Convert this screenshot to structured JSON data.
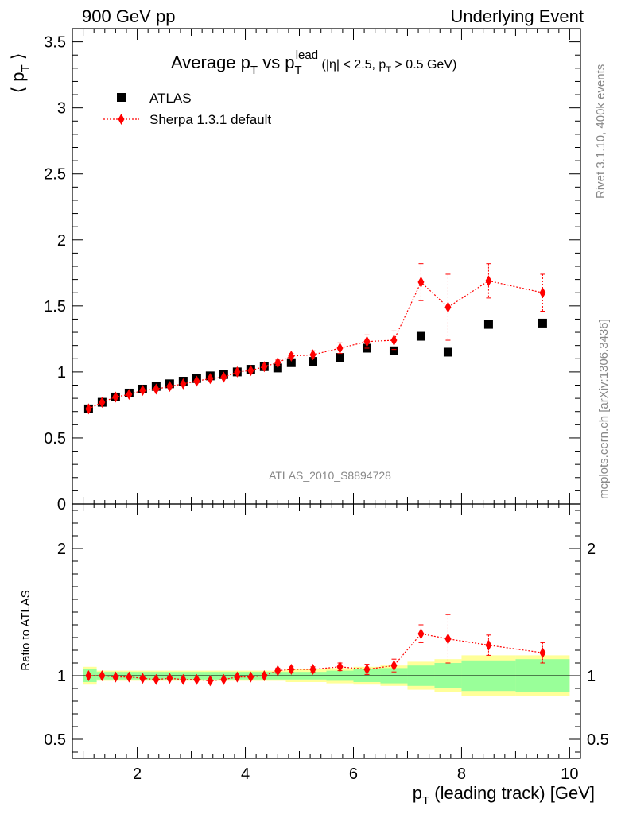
{
  "header": {
    "left": "900 GeV pp",
    "right": "Underlying Event"
  },
  "side_labels": {
    "rivet": "Rivet 3.1.10,  400k events",
    "mcplots": "mcplots.cern.ch [arXiv:1306.3436]"
  },
  "chart_data": [
    {
      "type": "scatter",
      "title": {
        "main": "Average p",
        "main_sub": "T",
        "vs": " vs p",
        "vs_sub": "T",
        "vs_sup": "lead",
        "cuts_a": " (|η| < 2.5, p",
        "cuts_sub": "T",
        "cuts_b": " > 0.5 GeV)"
      },
      "ylabel": {
        "open": "⟨ p",
        "sub": "T",
        "close": " ⟩"
      },
      "analysis_label": "ATLAS_2010_S8894728",
      "ylim": [
        0,
        3.6
      ],
      "y_ticks": [
        0,
        0.5,
        1,
        1.5,
        2,
        2.5,
        3,
        3.5
      ],
      "y_tick_labels": [
        "0",
        "0.5",
        "1",
        "1.5",
        "2",
        "2.5",
        "3",
        "3.5"
      ],
      "xlim": [
        0.8,
        10.2
      ],
      "legend_position": "top-left",
      "series": [
        {
          "name": "ATLAS",
          "marker": "square",
          "color": "#000000",
          "x": [
            1.1,
            1.35,
            1.6,
            1.85,
            2.1,
            2.35,
            2.6,
            2.85,
            3.1,
            3.35,
            3.6,
            3.85,
            4.1,
            4.35,
            4.6,
            4.85,
            5.25,
            5.75,
            6.25,
            6.75,
            7.25,
            7.75,
            8.5,
            9.5
          ],
          "y": [
            0.72,
            0.77,
            0.81,
            0.84,
            0.87,
            0.89,
            0.91,
            0.93,
            0.95,
            0.97,
            0.98,
            1.0,
            1.02,
            1.04,
            1.03,
            1.07,
            1.08,
            1.11,
            1.18,
            1.16,
            1.27,
            1.15,
            1.36,
            1.37
          ]
        },
        {
          "name": "Sherpa 1.3.1 default",
          "marker": "diamond",
          "color": "#ff0000",
          "x": [
            1.1,
            1.35,
            1.6,
            1.85,
            2.1,
            2.35,
            2.6,
            2.85,
            3.1,
            3.35,
            3.6,
            3.85,
            4.1,
            4.35,
            4.6,
            4.85,
            5.25,
            5.75,
            6.25,
            6.75,
            7.25,
            7.75,
            8.5,
            9.5
          ],
          "y": [
            0.72,
            0.77,
            0.81,
            0.83,
            0.86,
            0.87,
            0.89,
            0.91,
            0.93,
            0.95,
            0.96,
            1.0,
            1.01,
            1.04,
            1.07,
            1.12,
            1.13,
            1.18,
            1.23,
            1.24,
            1.68,
            1.49,
            1.69,
            1.6
          ],
          "err": [
            0.01,
            0.01,
            0.01,
            0.01,
            0.01,
            0.01,
            0.01,
            0.01,
            0.01,
            0.01,
            0.01,
            0.01,
            0.01,
            0.01,
            0.02,
            0.02,
            0.03,
            0.04,
            0.05,
            0.07,
            0.14,
            0.25,
            0.13,
            0.14
          ]
        }
      ]
    },
    {
      "type": "scatter",
      "ylabel": "Ratio to ATLAS",
      "ylim": [
        0.35,
        2.35
      ],
      "y_ticks": [
        0.5,
        1,
        2
      ],
      "y_tick_labels": [
        "0.5",
        "1",
        "2"
      ],
      "xlim": [
        0.8,
        10.2
      ],
      "x_ticks": [
        2,
        4,
        6,
        8,
        10
      ],
      "x_tick_labels": [
        "2",
        "4",
        "6",
        "8",
        "10"
      ],
      "xlabel": {
        "main": "p",
        "sub": "T",
        "rest": " (leading track) [GeV]"
      },
      "bands": {
        "x_edges": [
          1.0,
          1.25,
          1.5,
          1.75,
          2.0,
          2.25,
          2.5,
          2.75,
          3.0,
          3.25,
          3.5,
          3.75,
          4.0,
          4.25,
          4.5,
          4.75,
          5.0,
          5.5,
          6.0,
          6.5,
          7.0,
          7.5,
          8.0,
          9.0,
          10.0
        ],
        "inner": [
          0.05,
          0.03,
          0.03,
          0.03,
          0.03,
          0.03,
          0.03,
          0.03,
          0.03,
          0.03,
          0.03,
          0.03,
          0.03,
          0.03,
          0.03,
          0.03,
          0.03,
          0.04,
          0.05,
          0.06,
          0.08,
          0.1,
          0.12,
          0.13
        ],
        "outer": [
          0.07,
          0.04,
          0.04,
          0.04,
          0.04,
          0.04,
          0.04,
          0.04,
          0.04,
          0.04,
          0.04,
          0.04,
          0.04,
          0.04,
          0.04,
          0.05,
          0.05,
          0.06,
          0.07,
          0.08,
          0.11,
          0.13,
          0.16,
          0.16
        ],
        "inner_color": "#99ff99",
        "outer_color": "#ffff99"
      },
      "series": [
        {
          "name": "Sherpa 1.3.1 default",
          "marker": "diamond",
          "color": "#ff0000",
          "x": [
            1.1,
            1.35,
            1.6,
            1.85,
            2.1,
            2.35,
            2.6,
            2.85,
            3.1,
            3.35,
            3.6,
            3.85,
            4.1,
            4.35,
            4.6,
            4.85,
            5.25,
            5.75,
            6.25,
            6.75,
            7.25,
            7.75,
            8.5,
            9.5
          ],
          "y": [
            1.0,
            1.0,
            0.99,
            0.99,
            0.98,
            0.97,
            0.98,
            0.97,
            0.97,
            0.96,
            0.97,
            0.99,
            0.99,
            1.0,
            1.04,
            1.05,
            1.05,
            1.07,
            1.05,
            1.08,
            1.33,
            1.29,
            1.24,
            1.18
          ],
          "err": [
            0.01,
            0.01,
            0.01,
            0.01,
            0.01,
            0.01,
            0.01,
            0.01,
            0.01,
            0.01,
            0.01,
            0.01,
            0.01,
            0.01,
            0.02,
            0.02,
            0.02,
            0.03,
            0.04,
            0.05,
            0.07,
            0.19,
            0.08,
            0.08
          ]
        }
      ]
    }
  ]
}
